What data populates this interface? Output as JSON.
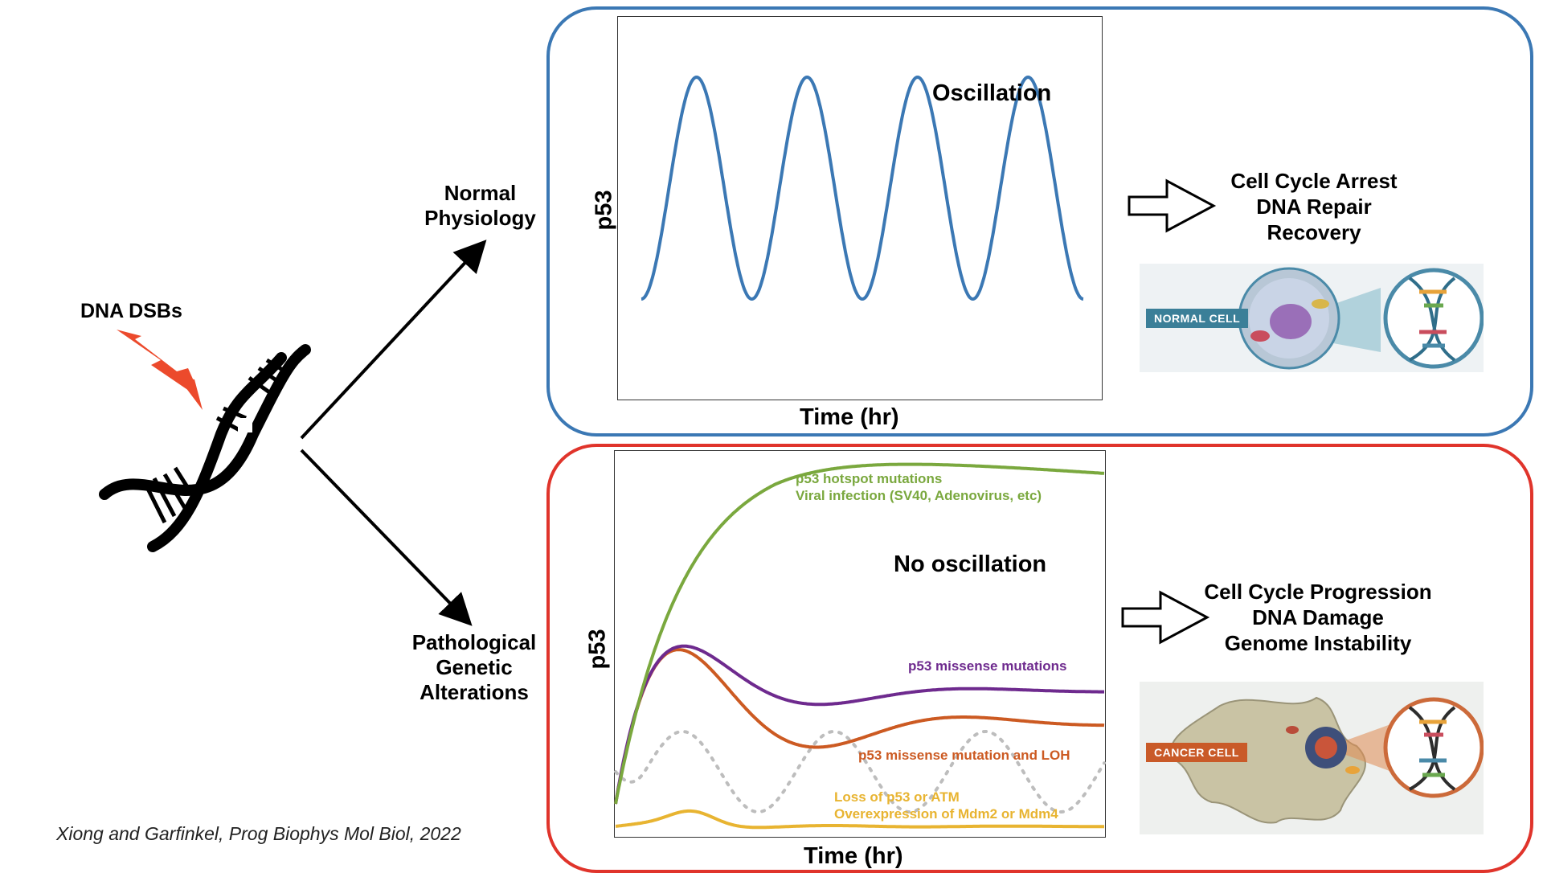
{
  "left": {
    "trigger_label": "DNA DSBs",
    "citation": "Xiong and Garfinkel, Prog Biophys Mol Biol, 2022"
  },
  "branches": {
    "normal": [
      "Normal",
      "Physiology"
    ],
    "pathological": [
      "Pathological",
      "Genetic",
      "Alterations"
    ]
  },
  "normal_panel": {
    "plot_title": "Oscillation",
    "y_axis": "p53",
    "x_axis": "Time (hr)",
    "outcomes": [
      "Cell Cycle Arrest",
      "DNA Repair",
      "Recovery"
    ],
    "cell_badge": "NORMAL CELL",
    "curve_color": "#3b78b4"
  },
  "path_panel": {
    "plot_title": "No oscillation",
    "y_axis": "p53",
    "x_axis": "Time (hr)",
    "outcomes": [
      "Cell Cycle Progression",
      "DNA Damage",
      "Genome Instability"
    ],
    "cell_badge": "CANCER CELL",
    "curve_labels": {
      "hotspot": [
        "p53 hotspot mutations",
        "Viral infection (SV40, Adenovirus, etc)"
      ],
      "missense": "p53 missense mutations",
      "loh": "p53 missense mutation and LOH",
      "loss": [
        "Loss of p53 or ATM",
        "Overexpression of Mdm2 or Mdm4"
      ]
    },
    "colors": {
      "green": "#7aa83e",
      "purple": "#6e2a8e",
      "orange": "#cc5a22",
      "yellow": "#e8b431",
      "gray": "#bdbdbd"
    }
  }
}
